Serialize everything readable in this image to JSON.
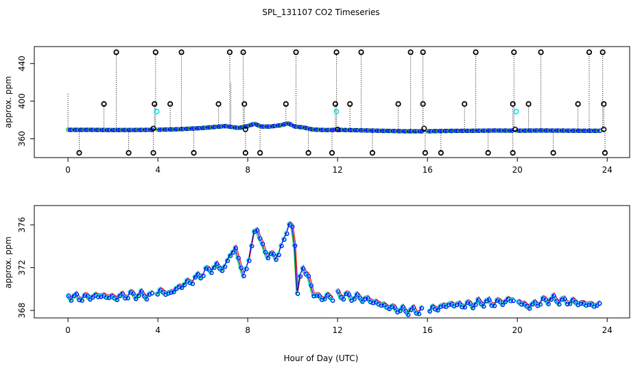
{
  "chart_data": {
    "title": "SPL_131107  CO2 Timeseries",
    "xlabel": "Hour of Day (UTC)",
    "type": "scatter",
    "series_colors": {
      "raw": "#000000",
      "series_1": "#ff0000",
      "series_2": "#00cc00",
      "series_3": "#0000ff",
      "flagged": "#00e5e5"
    },
    "panels": [
      {
        "ylabel": "approx. ppm",
        "xlim": [
          -1.5,
          25
        ],
        "ylim": [
          340,
          458
        ],
        "xticks": [
          "0",
          "4",
          "8",
          "12",
          "16",
          "20",
          "24"
        ],
        "yticks": [
          "360",
          "400",
          "440"
        ],
        "baseline": [
          [
            0,
            369.5
          ],
          [
            1,
            369.5
          ],
          [
            2,
            369.3
          ],
          [
            3,
            369.4
          ],
          [
            4,
            369.6
          ],
          [
            5,
            370.2
          ],
          [
            6,
            371.5
          ],
          [
            7,
            373.5
          ],
          [
            7.6,
            371.5
          ],
          [
            8,
            373.5
          ],
          [
            8.3,
            376
          ],
          [
            8.6,
            373
          ],
          [
            9,
            373
          ],
          [
            9.5,
            374.5
          ],
          [
            9.8,
            376.5
          ],
          [
            10.1,
            373
          ],
          [
            10.5,
            372
          ],
          [
            10.9,
            369.8
          ],
          [
            11.5,
            369.3
          ],
          [
            12,
            369.5
          ],
          [
            13,
            369
          ],
          [
            14,
            368.5
          ],
          [
            15,
            368
          ],
          [
            15.8,
            368
          ],
          [
            16,
            368
          ],
          [
            17,
            368.4
          ],
          [
            18,
            368.5
          ],
          [
            19,
            368.8
          ],
          [
            20,
            368.6
          ],
          [
            21,
            368.8
          ],
          [
            22,
            368.7
          ],
          [
            23,
            368.5
          ],
          [
            23.7,
            368.5
          ]
        ],
        "high_spikes": [
          2.15,
          3.9,
          5.05,
          7.2,
          7.8,
          10.15,
          11.95,
          13.05,
          15.25,
          15.8,
          18.15,
          19.85,
          21.05,
          23.2,
          23.8
        ],
        "high_value": 452,
        "mid_spikes": [
          1.6,
          3.85,
          4.55,
          6.7,
          7.85,
          9.7,
          11.9,
          12.55,
          14.7,
          15.8,
          17.65,
          19.8,
          20.5,
          22.7,
          23.85
        ],
        "mid_value": 397,
        "low_spikes": [
          0.5,
          2.7,
          3.8,
          5.6,
          7.9,
          8.55,
          10.7,
          11.75,
          13.55,
          15.9,
          16.6,
          18.7,
          19.8,
          21.6,
          23.9
        ],
        "low_value": 345,
        "cyan_points": [
          [
            3.95,
            389
          ],
          [
            11.95,
            389
          ],
          [
            19.95,
            389
          ]
        ],
        "black_circles": [
          [
            3.8,
            371
          ],
          [
            7.9,
            370
          ],
          [
            12,
            370
          ],
          [
            15.85,
            371
          ],
          [
            19.9,
            370
          ],
          [
            23.85,
            370
          ]
        ]
      },
      {
        "ylabel": "approx. ppm",
        "xlim": [
          -1.5,
          25
        ],
        "ylim": [
          367.3,
          377.8
        ],
        "xticks": [
          "0",
          "4",
          "8",
          "12",
          "16",
          "20",
          "24"
        ],
        "yticks": [
          "368",
          "372",
          "376"
        ],
        "profile": [
          [
            0,
            369.4
          ],
          [
            0.5,
            369.2
          ],
          [
            1,
            369.3
          ],
          [
            1.5,
            369.4
          ],
          [
            2,
            369.2
          ],
          [
            2.5,
            369.4
          ],
          [
            3,
            369.5
          ],
          [
            3.8,
            369.4
          ],
          [
            4,
            369.8
          ],
          [
            4.5,
            369.6
          ],
          [
            5,
            370.3
          ],
          [
            5.5,
            370.8
          ],
          [
            6,
            371.5
          ],
          [
            6.5,
            372.1
          ],
          [
            7,
            372
          ],
          [
            7.2,
            373.3
          ],
          [
            7.45,
            373.8
          ],
          [
            7.8,
            371.2
          ],
          [
            8.1,
            373.2
          ],
          [
            8.35,
            376.2
          ],
          [
            8.6,
            374.1
          ],
          [
            8.9,
            373.2
          ],
          [
            9.2,
            373
          ],
          [
            9.5,
            373.8
          ],
          [
            9.8,
            376.2
          ],
          [
            10.05,
            375.3
          ],
          [
            10.2,
            369.8
          ],
          [
            10.4,
            372
          ],
          [
            10.7,
            371.2
          ],
          [
            10.9,
            369.5
          ],
          [
            11.3,
            369.2
          ],
          [
            11.8,
            369.3
          ],
          [
            12,
            369.5
          ],
          [
            12.5,
            369.3
          ],
          [
            13,
            369.2
          ],
          [
            13.5,
            368.9
          ],
          [
            14,
            368.5
          ],
          [
            14.5,
            368.2
          ],
          [
            15,
            368
          ],
          [
            15.8,
            368
          ],
          [
            16,
            368
          ],
          [
            16.5,
            368.3
          ],
          [
            17,
            368.6
          ],
          [
            17.5,
            368.5
          ],
          [
            18,
            368.6
          ],
          [
            18.5,
            368.8
          ],
          [
            19,
            368.7
          ],
          [
            19.5,
            368.9
          ],
          [
            19.9,
            369.1
          ],
          [
            20.2,
            368.6
          ],
          [
            20.5,
            368.4
          ],
          [
            21,
            368.8
          ],
          [
            21.5,
            369.1
          ],
          [
            22,
            368.9
          ],
          [
            22.5,
            368.8
          ],
          [
            23,
            368.6
          ],
          [
            23.7,
            368.5
          ]
        ]
      }
    ]
  }
}
